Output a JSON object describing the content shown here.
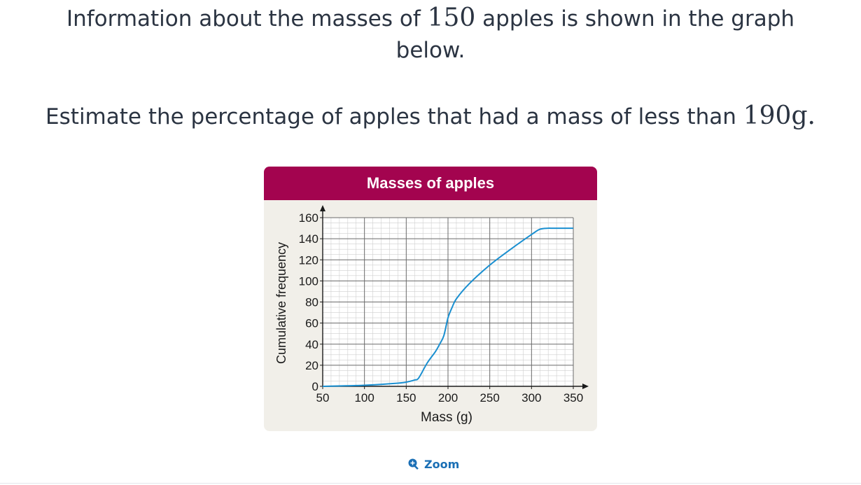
{
  "question": {
    "line1_before": "Information about the masses of ",
    "line1_num": "150",
    "line1_after": " apples is shown in the graph",
    "line2": "below.",
    "line3_before": "Estimate the percentage of apples that had a mass of less than ",
    "line3_num": "190",
    "line3_unit": "g",
    "line3_after": "."
  },
  "zoom": {
    "label": "Zoom",
    "icon": "zoom-in-icon"
  },
  "colors": {
    "header": "#a3044f",
    "curve": "#1a8fd0",
    "card": "#f1efe9",
    "zoom": "#1a6fb5"
  },
  "chart_data": {
    "type": "line",
    "title": "Masses of apples",
    "xlabel": "Mass (g)",
    "ylabel": "Cumulative frequency",
    "xlim": [
      50,
      350
    ],
    "ylim": [
      0,
      160
    ],
    "xticks": [
      50,
      100,
      150,
      200,
      250,
      300,
      350
    ],
    "yticks": [
      0,
      20,
      40,
      60,
      80,
      100,
      120,
      140,
      160
    ],
    "grid": true,
    "series": [
      {
        "x": [
          50,
          100,
          140,
          150,
          160,
          165,
          175,
          185,
          190,
          195,
          200,
          205,
          210,
          225,
          250,
          275,
          300,
          310,
          320,
          325,
          350
        ],
        "y": [
          0,
          1,
          3,
          4,
          6,
          8,
          22,
          33,
          40,
          48,
          65,
          75,
          83,
          97,
          115,
          130,
          144,
          149,
          150,
          150,
          150
        ]
      }
    ]
  }
}
